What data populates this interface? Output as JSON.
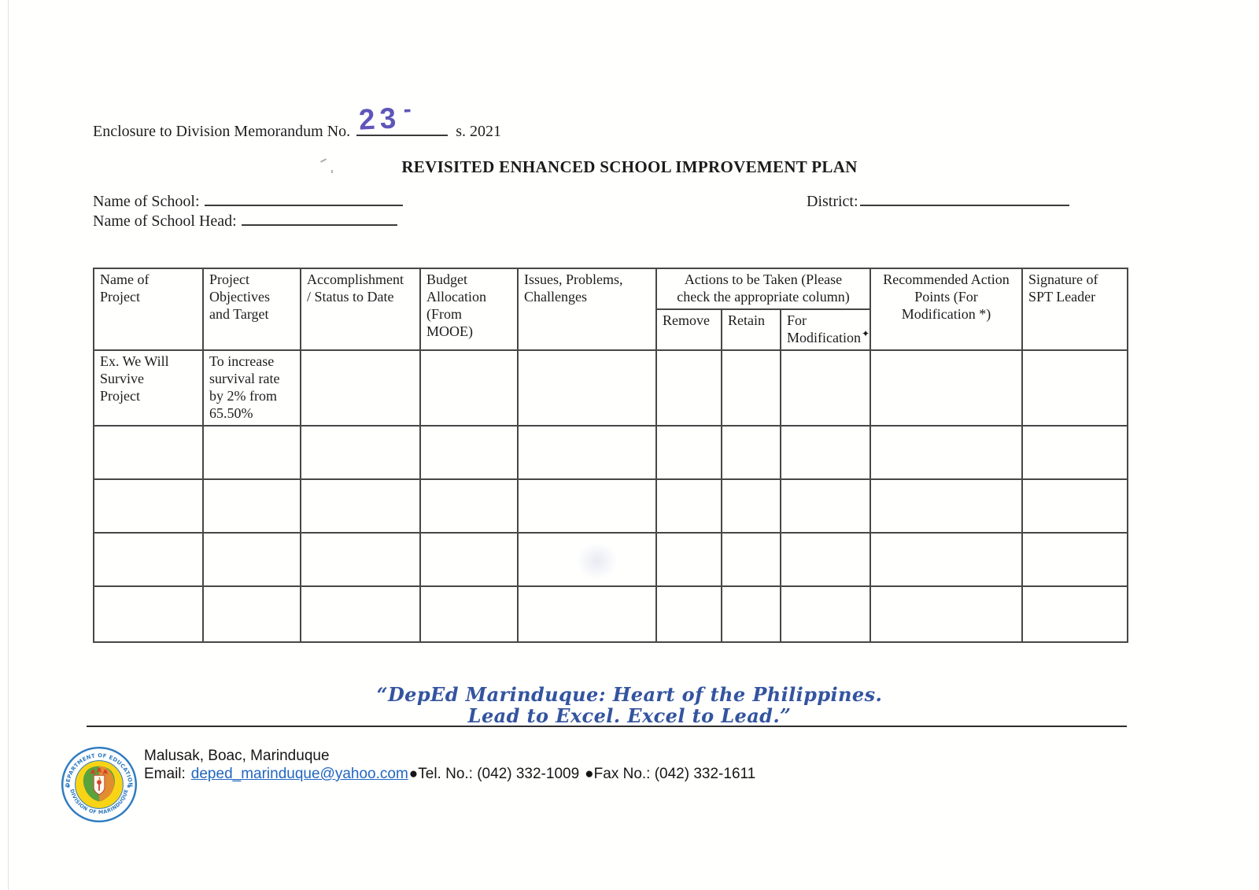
{
  "document": {
    "enclosure_prefix": "Enclosure to Division Memorandum No.",
    "enclosure_suffix": "s. 2021",
    "handwritten_memo_number": "23",
    "handwritten_dash": "-",
    "title": "REVISITED ENHANCED SCHOOL IMPROVEMENT PLAN",
    "name_of_school_label": "Name of School:",
    "name_of_school_value": "",
    "district_label": "District:",
    "district_value": "",
    "name_of_school_head_label": "Name of School Head:",
    "name_of_school_head_value": ""
  },
  "table": {
    "columns": [
      "Name of\nProject",
      "Project\nObjectives\nand Target",
      "Accomplishment\n/ Status to Date",
      "Budget\nAllocation\n(From\nMOOE)",
      "Issues, Problems,\nChallenges"
    ],
    "actions_group_label": "Actions to be Taken (Please\ncheck the appropriate column)",
    "action_remove": "Remove",
    "action_retain": "Retain",
    "action_for_modification": "For\nModification",
    "pen_mark": "✦",
    "recommended_label": "Recommended Action\nPoints  (For\nModification *)",
    "signature_label": "Signature of\nSPT Leader",
    "rows": [
      [
        "Ex. We Will\nSurvive\nProject",
        "To increase\nsurvival rate\nby 2% from\n65.50%",
        "",
        "",
        "",
        "",
        "",
        "",
        "",
        ""
      ],
      [
        "",
        "",
        "",
        "",
        "",
        "",
        "",
        "",
        "",
        ""
      ],
      [
        "",
        "",
        "",
        "",
        "",
        "",
        "",
        "",
        "",
        ""
      ],
      [
        "",
        "",
        "",
        "",
        "",
        "",
        "",
        "",
        "",
        ""
      ],
      [
        "",
        "",
        "",
        "",
        "",
        "",
        "",
        "",
        "",
        ""
      ]
    ]
  },
  "tagline_line1": "“DepEd Marinduque: Heart of the Philippines.",
  "tagline_line2": "Lead to Excel. Excel to Lead.”",
  "footer": {
    "address": "Malusak, Boac, Marinduque",
    "email_label": "Email:",
    "email": "deped_marinduque@yahoo.com",
    "tel": "●Tel. No.: (042) 332-1009",
    "fax": "●Fax No.: (042) 332-1611",
    "logo": {
      "top_text": "DEPARTMENT OF EDUCATION",
      "bottom_text": "DIVISION OF MARINDUQUE",
      "star": "★"
    }
  },
  "colors": {
    "tagline_blue": "#33549f",
    "handwriting_violet": "#5f55b9",
    "link_blue": "#2166c0",
    "logo_blue": "#2e7bbf",
    "logo_yellow": "#f9d416"
  }
}
